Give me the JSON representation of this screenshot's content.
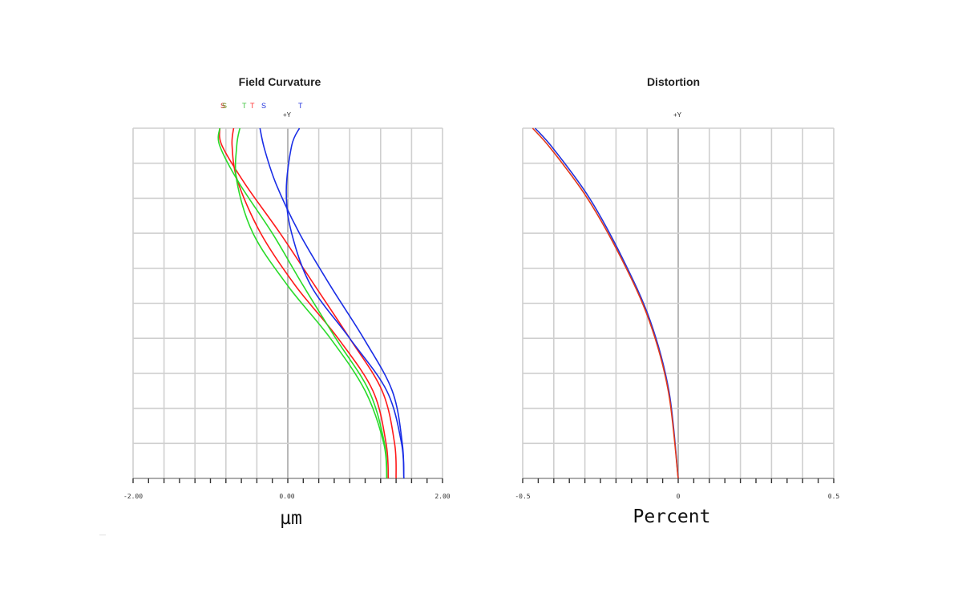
{
  "chart_data": [
    {
      "type": "line",
      "title": "Field Curvature",
      "xlabel": "µm",
      "ylabel": "",
      "xlim": [
        -2.0,
        2.0
      ],
      "ylim": [
        0,
        1
      ],
      "tick_labels": [
        "-2.00",
        "0.00",
        "2.00"
      ],
      "field_label": "+Y",
      "grid": true,
      "legend": [
        {
          "label": "S",
          "color": "#cc2a2a"
        },
        {
          "label": "S",
          "color": "#6aa02a"
        },
        {
          "label": "T",
          "color": "#3ec43e"
        },
        {
          "label": "T",
          "color": "#ff3030"
        },
        {
          "label": "S",
          "color": "#2233dd"
        },
        {
          "label": "T",
          "color": "#2233dd"
        }
      ],
      "series": [
        {
          "color": "#ff1a1a",
          "points": [
            [
              1.4,
              0.0
            ],
            [
              1.38,
              0.1
            ],
            [
              1.22,
              0.25
            ],
            [
              0.8,
              0.4
            ],
            [
              0.35,
              0.55
            ],
            [
              -0.1,
              0.7
            ],
            [
              -0.55,
              0.84
            ],
            [
              -0.85,
              0.95
            ],
            [
              -0.88,
              1.0
            ]
          ]
        },
        {
          "color": "#ff1a1a",
          "points": [
            [
              1.3,
              0.0
            ],
            [
              1.27,
              0.1
            ],
            [
              1.1,
              0.25
            ],
            [
              0.65,
              0.4
            ],
            [
              0.1,
              0.55
            ],
            [
              -0.35,
              0.7
            ],
            [
              -0.65,
              0.85
            ],
            [
              -0.72,
              0.95
            ],
            [
              -0.7,
              1.0
            ]
          ]
        },
        {
          "color": "#2adb2a",
          "points": [
            [
              1.28,
              0.0
            ],
            [
              1.25,
              0.1
            ],
            [
              1.05,
              0.25
            ],
            [
              0.62,
              0.4
            ],
            [
              0.2,
              0.55
            ],
            [
              -0.2,
              0.7
            ],
            [
              -0.62,
              0.84
            ],
            [
              -0.88,
              0.95
            ],
            [
              -0.88,
              1.0
            ]
          ]
        },
        {
          "color": "#2adb2a",
          "points": [
            [
              1.28,
              0.0
            ],
            [
              1.24,
              0.1
            ],
            [
              1.0,
              0.25
            ],
            [
              0.55,
              0.4
            ],
            [
              0.0,
              0.55
            ],
            [
              -0.45,
              0.7
            ],
            [
              -0.66,
              0.85
            ],
            [
              -0.66,
              0.95
            ],
            [
              -0.62,
              1.0
            ]
          ]
        },
        {
          "color": "#1a2ee6",
          "points": [
            [
              1.5,
              0.0
            ],
            [
              1.48,
              0.1
            ],
            [
              1.35,
              0.25
            ],
            [
              0.98,
              0.4
            ],
            [
              0.55,
              0.55
            ],
            [
              0.15,
              0.7
            ],
            [
              -0.15,
              0.84
            ],
            [
              -0.3,
              0.94
            ],
            [
              -0.36,
              1.0
            ]
          ]
        },
        {
          "color": "#1a2ee6",
          "points": [
            [
              1.5,
              0.0
            ],
            [
              1.47,
              0.1
            ],
            [
              1.28,
              0.25
            ],
            [
              0.8,
              0.4
            ],
            [
              0.3,
              0.55
            ],
            [
              0.05,
              0.7
            ],
            [
              -0.02,
              0.82
            ],
            [
              0.05,
              0.95
            ],
            [
              0.15,
              1.0
            ]
          ]
        }
      ]
    },
    {
      "type": "line",
      "title": "Distortion",
      "xlabel": "Percent",
      "ylabel": "",
      "xlim": [
        -0.5,
        0.5
      ],
      "ylim": [
        0,
        1
      ],
      "tick_labels": [
        "-0.5",
        "0",
        "0.5"
      ],
      "field_label": "+Y",
      "grid": true,
      "series": [
        {
          "color": "#2233dd",
          "points": [
            [
              0.0,
              0.0
            ],
            [
              -0.03,
              0.25
            ],
            [
              -0.09,
              0.45
            ],
            [
              -0.18,
              0.63
            ],
            [
              -0.285,
              0.8
            ],
            [
              -0.4,
              0.94
            ],
            [
              -0.46,
              1.0
            ]
          ]
        },
        {
          "color": "#e23a1a",
          "points": [
            [
              0.0,
              0.0
            ],
            [
              -0.032,
              0.25
            ],
            [
              -0.093,
              0.45
            ],
            [
              -0.184,
              0.63
            ],
            [
              -0.292,
              0.8
            ],
            [
              -0.408,
              0.94
            ],
            [
              -0.468,
              1.0
            ]
          ]
        }
      ]
    }
  ],
  "corner_mark": "—"
}
